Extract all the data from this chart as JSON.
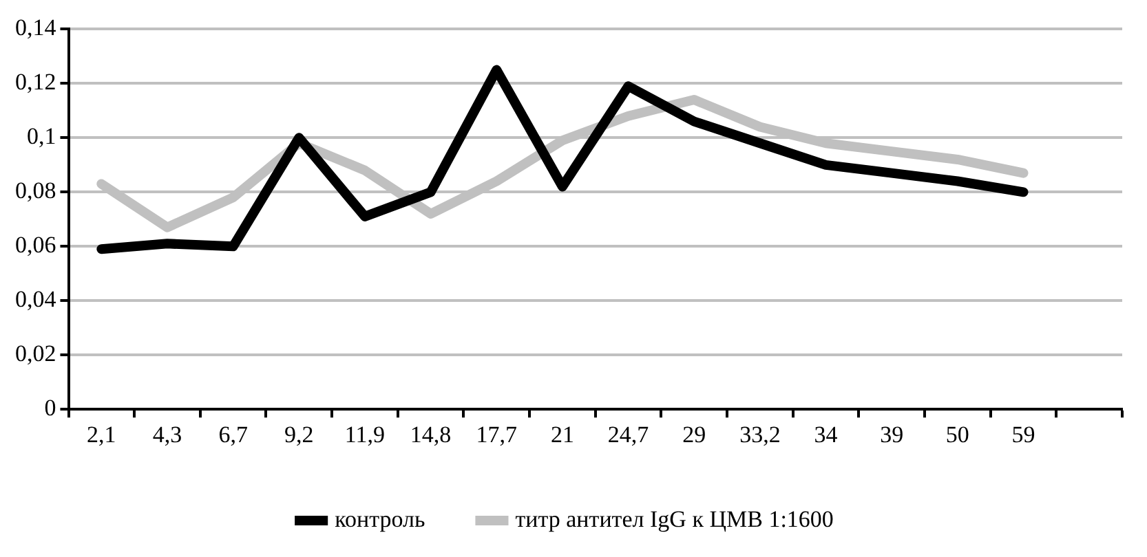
{
  "chart_data": {
    "type": "line",
    "categories": [
      "2,1",
      "4,3",
      "6,7",
      "9,2",
      "11,9",
      "14,8",
      "17,7",
      "21",
      "24,7",
      "29",
      "33,2",
      "34",
      "39",
      "50",
      "59",
      null
    ],
    "series": [
      {
        "name": "контроль",
        "color": "#000000",
        "values": [
          0.059,
          0.061,
          0.06,
          0.1,
          0.071,
          0.08,
          0.125,
          0.082,
          0.119,
          0.106,
          0.098,
          0.09,
          0.087,
          0.084,
          0.08,
          null
        ]
      },
      {
        "name": "титр антител IgG к ЦМВ 1:1600",
        "color": "#c0c0c0",
        "values": [
          0.083,
          0.067,
          0.078,
          0.098,
          0.088,
          0.072,
          0.084,
          0.099,
          0.108,
          0.114,
          0.104,
          0.098,
          0.095,
          0.092,
          0.087,
          null
        ]
      }
    ],
    "ylim": [
      0,
      0.14
    ],
    "yticks": [
      {
        "value": 0,
        "label": "0"
      },
      {
        "value": 0.02,
        "label": "0,02"
      },
      {
        "value": 0.04,
        "label": "0,04"
      },
      {
        "value": 0.06,
        "label": "0,06"
      },
      {
        "value": 0.08,
        "label": "0,08"
      },
      {
        "value": 0.1,
        "label": "0,1"
      },
      {
        "value": 0.12,
        "label": "0,12"
      },
      {
        "value": 0.14,
        "label": "0,14"
      }
    ],
    "grid": "y",
    "legend": "bottom",
    "marker": "none",
    "line_style": "solid"
  }
}
